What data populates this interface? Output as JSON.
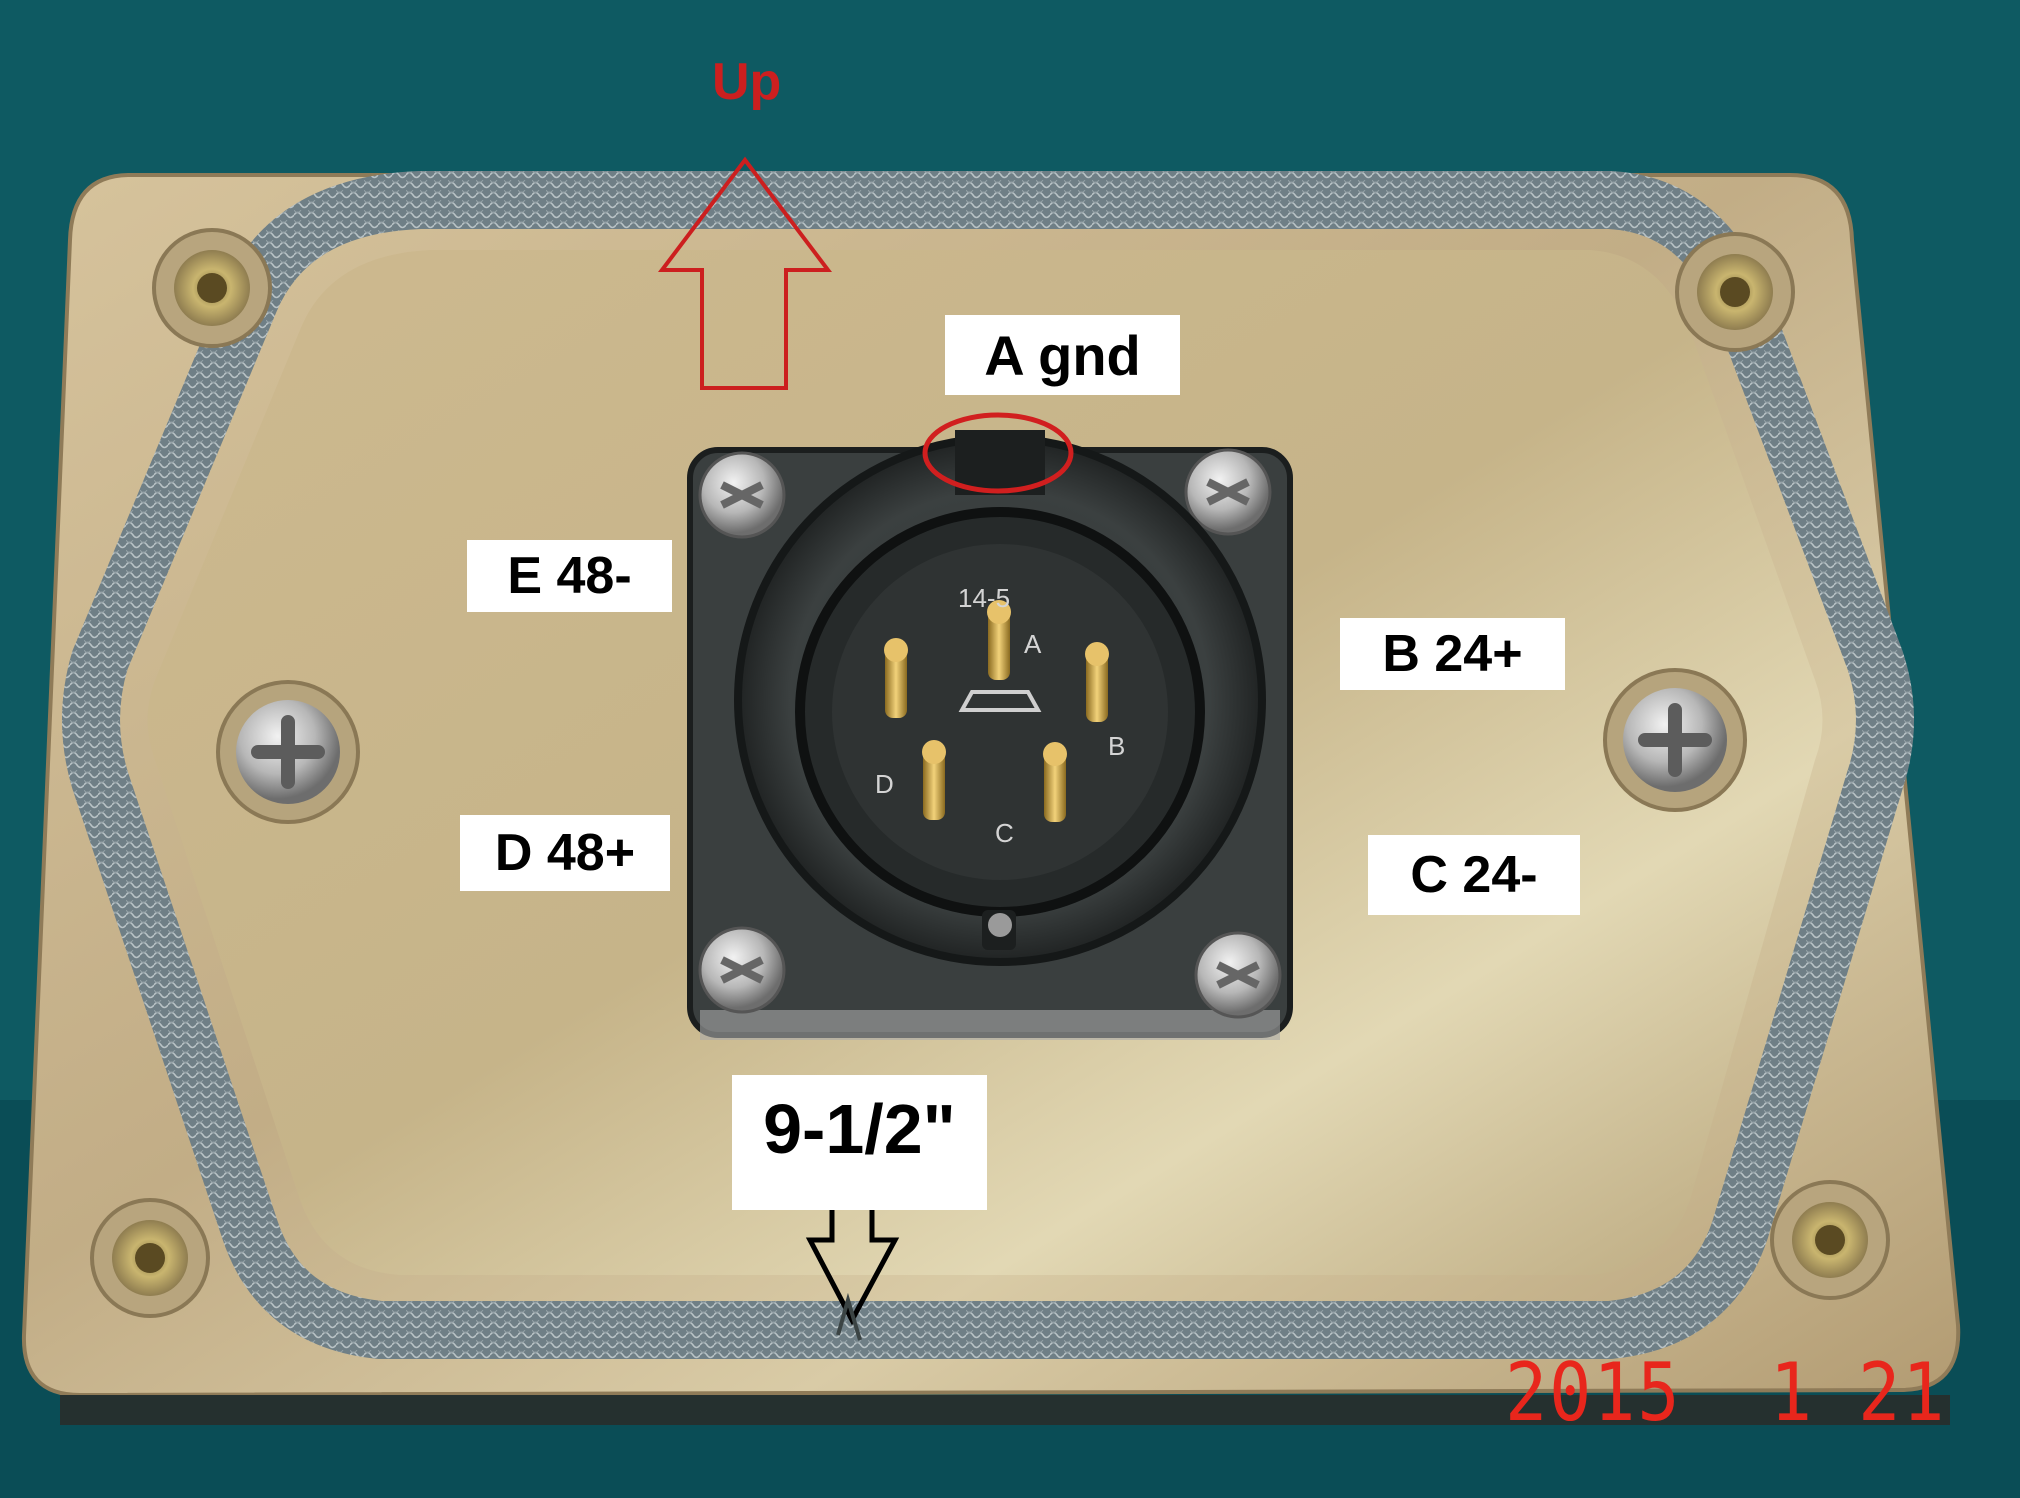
{
  "photo": {
    "description_tag": "connector-panel-photo"
  },
  "annotations": {
    "up_label": "Up",
    "pin_a_label": "A gnd",
    "pin_b_label": "B 24+",
    "pin_c_label": "C 24-",
    "pin_d_label": "D 48+",
    "pin_e_label": "E 48-",
    "dimension_label": "9-1/2\""
  },
  "connector_markings": {
    "part_number": "14-5",
    "pins": [
      "A",
      "B",
      "C",
      "D"
    ]
  },
  "date_stamp": "2015  1 21",
  "colors": {
    "background": "#0e5a62",
    "plate": "#c9b48e",
    "arrow_up": "#cc1f1f",
    "date_stamp": "#e8261c"
  }
}
